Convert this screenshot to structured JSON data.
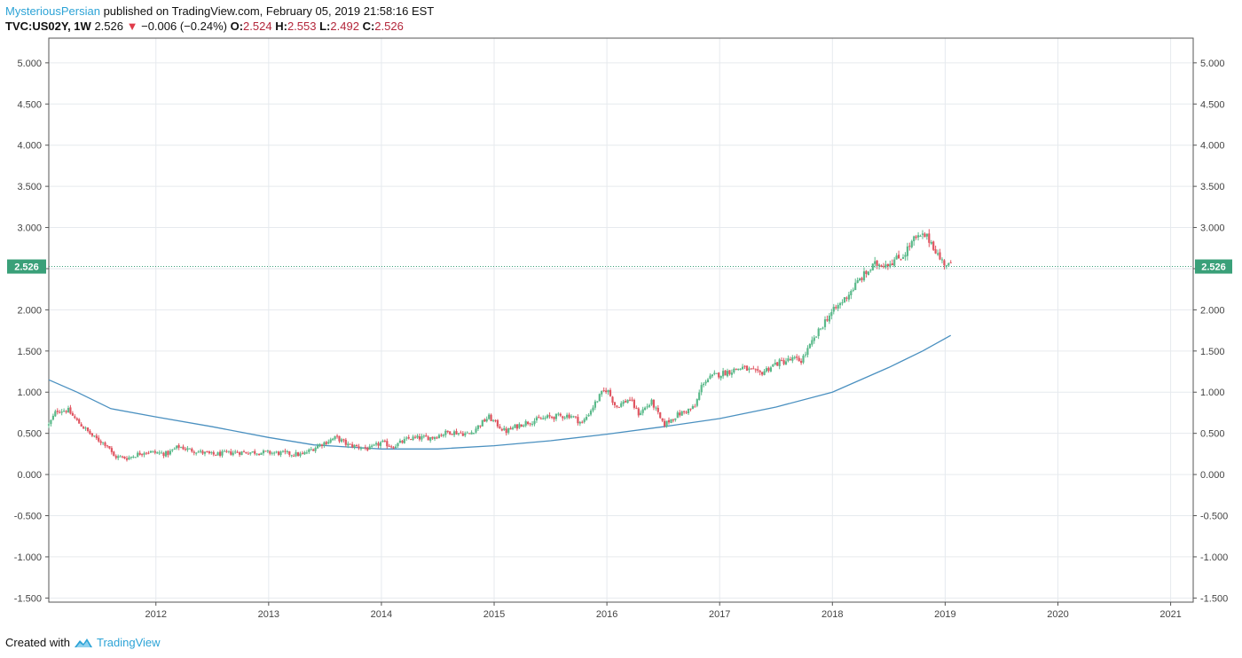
{
  "header": {
    "author": "MysteriousPersian",
    "published": "published on TradingView.com, February 05, 2019 21:58:16 EST",
    "symbol": "TVC:US02Y, 1W",
    "last": "2.526",
    "down_arrow": "▼",
    "change": "−0.006 (−0.24%)",
    "o_label": "O:",
    "o_value": "2.524",
    "h_label": "H:",
    "h_value": "2.553",
    "l_label": "L:",
    "l_value": "2.492",
    "c_label": "C:",
    "c_value": "2.526"
  },
  "footer": {
    "created_with": "Created with",
    "brand": "TradingView",
    "logo_icon": "tradingview-logo-icon"
  },
  "colors": {
    "up": "#5ab98a",
    "down": "#e05561",
    "ma": "#4a90c0",
    "price_line": "#3aa079",
    "grid": "#e6eaee",
    "author": "#2ca3d6"
  },
  "chart_data": {
    "type": "candlestick",
    "symbol": "TVC:US02Y",
    "interval": "1W",
    "last_price": 2.526,
    "price_label": "2.526",
    "ylim": [
      -1.55,
      5.3
    ],
    "y_ticks": [
      5.0,
      4.5,
      4.0,
      3.5,
      3.0,
      2.5,
      2.0,
      1.5,
      1.0,
      0.5,
      0.0,
      -0.5,
      -1.0,
      -1.5
    ],
    "y_tick_labels": [
      "5.000",
      "4.500",
      "4.000",
      "3.500",
      "3.000",
      "2.500",
      "2.000",
      "1.500",
      "1.000",
      "0.500",
      "0.000",
      "-0.500",
      "-1.000",
      "-1.500"
    ],
    "xlim": [
      2011.05,
      2021.2
    ],
    "x_ticks": [
      2012,
      2013,
      2014,
      2015,
      2016,
      2017,
      2018,
      2019,
      2020,
      2021
    ],
    "x_tick_labels": [
      "2012",
      "2013",
      "2014",
      "2015",
      "2016",
      "2017",
      "2018",
      "2019",
      "2020",
      "2021"
    ],
    "grid": true,
    "price_path": [
      [
        2011.05,
        0.6
      ],
      [
        2011.12,
        0.78
      ],
      [
        2011.22,
        0.78
      ],
      [
        2011.3,
        0.65
      ],
      [
        2011.45,
        0.45
      ],
      [
        2011.58,
        0.35
      ],
      [
        2011.62,
        0.22
      ],
      [
        2011.75,
        0.2
      ],
      [
        2011.9,
        0.28
      ],
      [
        2012.1,
        0.25
      ],
      [
        2012.2,
        0.34
      ],
      [
        2012.3,
        0.3
      ],
      [
        2012.5,
        0.24
      ],
      [
        2012.7,
        0.27
      ],
      [
        2012.9,
        0.27
      ],
      [
        2013.1,
        0.26
      ],
      [
        2013.3,
        0.24
      ],
      [
        2013.45,
        0.36
      ],
      [
        2013.6,
        0.45
      ],
      [
        2013.7,
        0.36
      ],
      [
        2013.9,
        0.31
      ],
      [
        2014.0,
        0.39
      ],
      [
        2014.1,
        0.34
      ],
      [
        2014.25,
        0.44
      ],
      [
        2014.45,
        0.45
      ],
      [
        2014.6,
        0.52
      ],
      [
        2014.78,
        0.49
      ],
      [
        2014.95,
        0.7
      ],
      [
        2015.1,
        0.52
      ],
      [
        2015.25,
        0.62
      ],
      [
        2015.4,
        0.67
      ],
      [
        2015.5,
        0.7
      ],
      [
        2015.68,
        0.72
      ],
      [
        2015.78,
        0.62
      ],
      [
        2015.95,
        0.98
      ],
      [
        2016.0,
        1.04
      ],
      [
        2016.08,
        0.82
      ],
      [
        2016.2,
        0.92
      ],
      [
        2016.28,
        0.74
      ],
      [
        2016.4,
        0.88
      ],
      [
        2016.5,
        0.6
      ],
      [
        2016.62,
        0.72
      ],
      [
        2016.78,
        0.82
      ],
      [
        2016.85,
        1.12
      ],
      [
        2016.95,
        1.2
      ],
      [
        2017.2,
        1.3
      ],
      [
        2017.35,
        1.22
      ],
      [
        2017.5,
        1.35
      ],
      [
        2017.65,
        1.4
      ],
      [
        2017.72,
        1.38
      ],
      [
        2017.82,
        1.6
      ],
      [
        2017.95,
        1.9
      ],
      [
        2018.1,
        2.12
      ],
      [
        2018.25,
        2.38
      ],
      [
        2018.38,
        2.55
      ],
      [
        2018.5,
        2.57
      ],
      [
        2018.62,
        2.65
      ],
      [
        2018.72,
        2.85
      ],
      [
        2018.82,
        2.9
      ],
      [
        2018.88,
        2.82
      ],
      [
        2018.96,
        2.6
      ],
      [
        2019.02,
        2.55
      ],
      [
        2019.06,
        2.526
      ]
    ],
    "ma_series": {
      "x": [
        2011.05,
        2011.3,
        2011.6,
        2012.0,
        2012.5,
        2013.0,
        2013.4,
        2014.0,
        2014.5,
        2015.0,
        2015.5,
        2016.0,
        2016.5,
        2017.0,
        2017.5,
        2018.0,
        2018.5,
        2018.8,
        2019.05
      ],
      "y": [
        1.15,
        1.0,
        0.8,
        0.7,
        0.58,
        0.45,
        0.36,
        0.31,
        0.31,
        0.35,
        0.41,
        0.49,
        0.58,
        0.68,
        0.82,
        1.0,
        1.3,
        1.5,
        1.69
      ]
    }
  }
}
